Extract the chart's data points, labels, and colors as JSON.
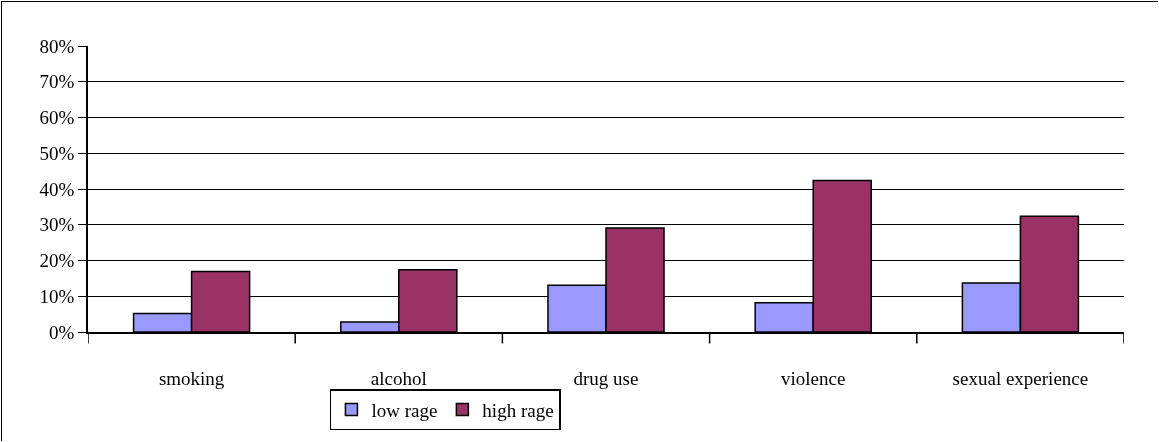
{
  "chart_data": {
    "type": "bar",
    "categories": [
      "smoking",
      "alcohol",
      "drug use",
      "violence",
      "sexual experience"
    ],
    "series": [
      {
        "name": "low rage",
        "color": "#9999ff",
        "values": [
          5.2,
          2.8,
          13.1,
          8.2,
          13.7
        ]
      },
      {
        "name": "high rage",
        "color": "#993366",
        "values": [
          16.9,
          17.4,
          29.1,
          42.4,
          32.4
        ]
      }
    ],
    "ylim": [
      0,
      80
    ],
    "yticks": [
      {
        "value": 0,
        "label": "0%"
      },
      {
        "value": 10,
        "label": "10%"
      },
      {
        "value": 20,
        "label": "20%"
      },
      {
        "value": 30,
        "label": "30%"
      },
      {
        "value": 40,
        "label": "40%"
      },
      {
        "value": 50,
        "label": "50%"
      },
      {
        "value": 60,
        "label": "60%"
      },
      {
        "value": 70,
        "label": "70%"
      },
      {
        "value": 80,
        "label": "80%"
      }
    ],
    "grid": "y",
    "legend": "bottom"
  }
}
